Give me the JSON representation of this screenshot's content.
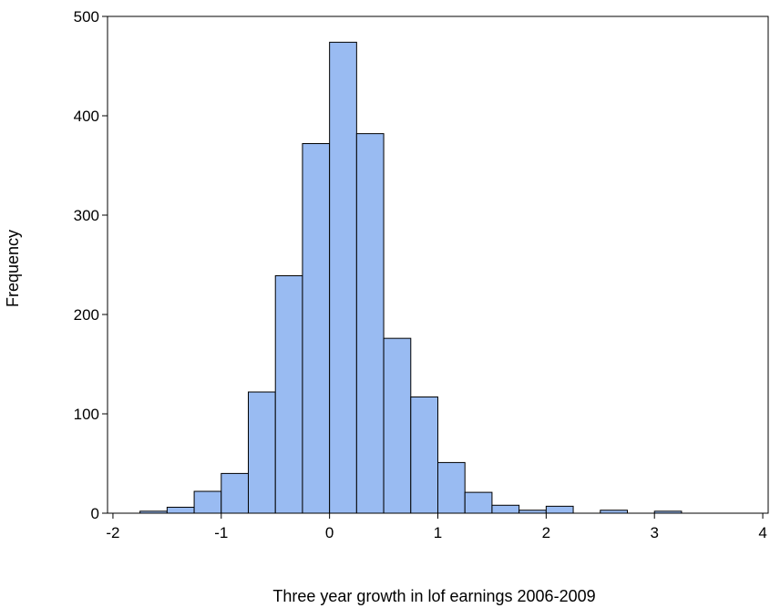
{
  "chart_data": {
    "type": "bar",
    "title": "",
    "xlabel": "Three year growth in lof earnings 2006-2009",
    "ylabel": "Frequency",
    "bin_width": 0.25,
    "bin_starts": [
      -1.75,
      -1.5,
      -1.25,
      -1.0,
      -0.75,
      -0.5,
      -0.25,
      0.0,
      0.25,
      0.5,
      0.75,
      1.0,
      1.25,
      1.5,
      1.75,
      2.0,
      2.5,
      3.0
    ],
    "values": [
      2,
      6,
      22,
      40,
      122,
      239,
      372,
      474,
      382,
      176,
      117,
      51,
      21,
      8,
      3,
      7,
      3,
      2
    ],
    "xlim": [
      -2.05,
      4.05
    ],
    "ylim": [
      0,
      500
    ],
    "xticks": [
      -2,
      -1,
      0,
      1,
      2,
      3,
      4
    ],
    "xtick_labels": [
      "-2",
      "-1",
      "0",
      "1",
      "2",
      "3",
      "4"
    ],
    "yticks": [
      0,
      100,
      200,
      300,
      400,
      500
    ],
    "ytick_labels": [
      "0",
      "100",
      "200",
      "300",
      "400",
      "500"
    ],
    "bar_color": "#99bbf2",
    "bar_edge_color": "#000000",
    "grid": false
  }
}
